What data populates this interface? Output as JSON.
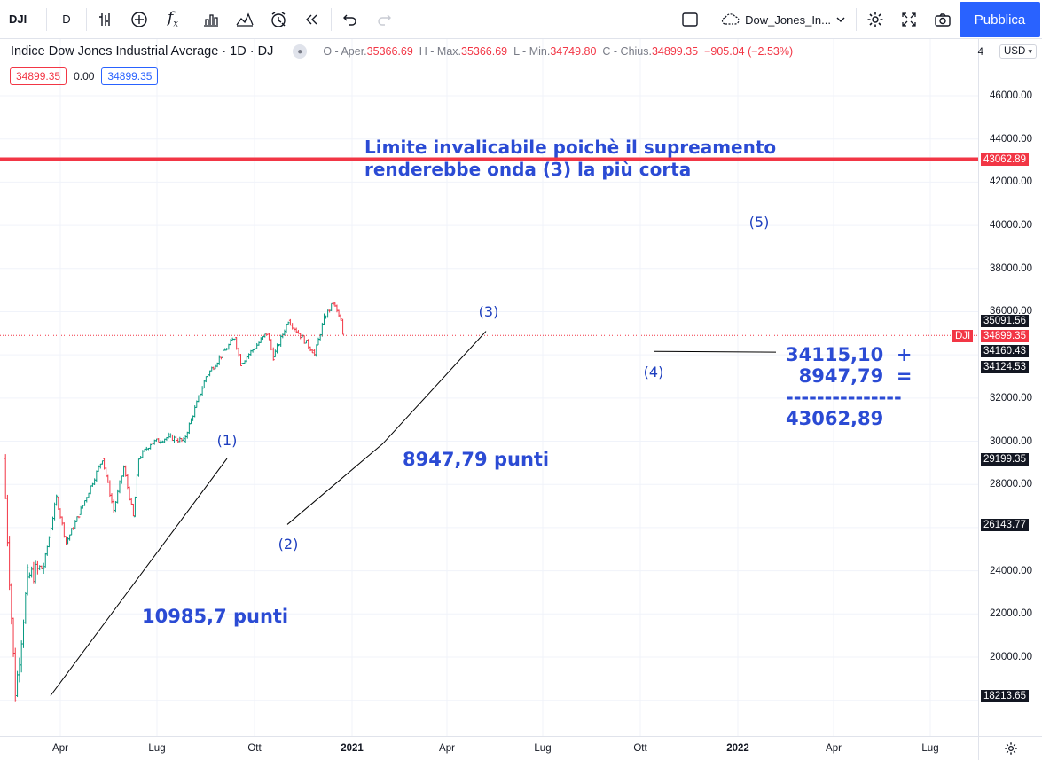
{
  "toolbar": {
    "symbol": "DJI",
    "interval": "D",
    "layout_name": "Dow_Jones_In...",
    "publish_label": "Pubblica"
  },
  "legend": {
    "title": "Indice Dow Jones Industrial Average · 1D · DJ",
    "o_label": "O - Aper.",
    "o_value": "35366.69",
    "h_label": "H - Max.",
    "h_value": "35366.69",
    "l_label": "L - Min.",
    "l_value": "34749.80",
    "c_label": "C - Chius.",
    "c_value": "34899.35",
    "change": "−905.04 (−2.53%)",
    "bid": "34899.35",
    "spread": "0.00",
    "ask": "34899.35"
  },
  "price_axis": {
    "currency": "USD",
    "top_partial": "4",
    "ticks": [
      "46000.00",
      "44000.00",
      "42000.00",
      "40000.00",
      "38000.00",
      "36000.00",
      "32000.00",
      "30000.00",
      "28000.00",
      "24000.00",
      "22000.00",
      "20000.00"
    ],
    "labels": [
      {
        "text": "43062.89",
        "style": "red"
      },
      {
        "text": "35091.56",
        "style": "dark"
      },
      {
        "text": "DJI",
        "style": "red-tag"
      },
      {
        "text": "34899.35",
        "style": "red"
      },
      {
        "text": "34160.43",
        "style": "dark"
      },
      {
        "text": "34124.53",
        "style": "dark"
      },
      {
        "text": "29199.35",
        "style": "dark"
      },
      {
        "text": "26143.77",
        "style": "dark"
      },
      {
        "text": "18213.65",
        "style": "dark"
      }
    ]
  },
  "time_axis": {
    "ticks": [
      {
        "label": "Apr",
        "bold": false
      },
      {
        "label": "Lug",
        "bold": false
      },
      {
        "label": "Ott",
        "bold": false
      },
      {
        "label": "2021",
        "bold": true
      },
      {
        "label": "Apr",
        "bold": false
      },
      {
        "label": "Lug",
        "bold": false
      },
      {
        "label": "Ott",
        "bold": false
      },
      {
        "label": "2022",
        "bold": true
      },
      {
        "label": "Apr",
        "bold": false
      },
      {
        "label": "Lug",
        "bold": false
      }
    ]
  },
  "annotations": {
    "limit_text": "Limite invalicabile poichè il supreamento\nrenderebbe onda (3) la più corta",
    "wave1": "(1)",
    "wave2": "(2)",
    "wave3": "(3)",
    "wave4": "(4)",
    "wave5": "(5)",
    "wave1_points": "10985,7 punti",
    "wave3_points": "8947,79 punti",
    "calc": "34115,10  +\n  8947,79  =\n---------------\n43062,89"
  },
  "colors": {
    "up": "#089981",
    "down": "#f23645",
    "limit_line": "#f23645",
    "annotation": "#2b4bd4",
    "accent": "#2962ff"
  },
  "chart_data": {
    "type": "line",
    "ylim": [
      17000,
      48500
    ],
    "x": [
      "2020-03-01",
      "2020-03-23",
      "2020-04-15",
      "2020-05-15",
      "2020-06-08",
      "2020-06-26",
      "2020-07-20",
      "2020-09-02",
      "2020-09-23",
      "2020-10-12",
      "2020-10-30",
      "2020-11-09",
      "2020-12-01",
      "2021-01-04",
      "2021-02-01",
      "2021-03-15",
      "2021-05-07",
      "2021-05-19",
      "2021-07-07",
      "2021-07-19",
      "2021-08-16",
      "2021-09-30",
      "2021-10-04",
      "2021-10-22",
      "2021-11-08",
      "2021-11-22",
      "2021-11-26"
    ],
    "series": [
      {
        "values": [
          29200,
          18213,
          23700,
          24200,
          27400,
          25300,
          26600,
          29199,
          26800,
          28800,
          26500,
          29200,
          29900,
          30200,
          30000,
          33000,
          34800,
          33600,
          35000,
          33900,
          35600,
          34200,
          34000,
          35700,
          36400,
          35600,
          34899
        ]
      }
    ],
    "horizontal_lines": [
      {
        "price": 43062.89
      }
    ]
  }
}
